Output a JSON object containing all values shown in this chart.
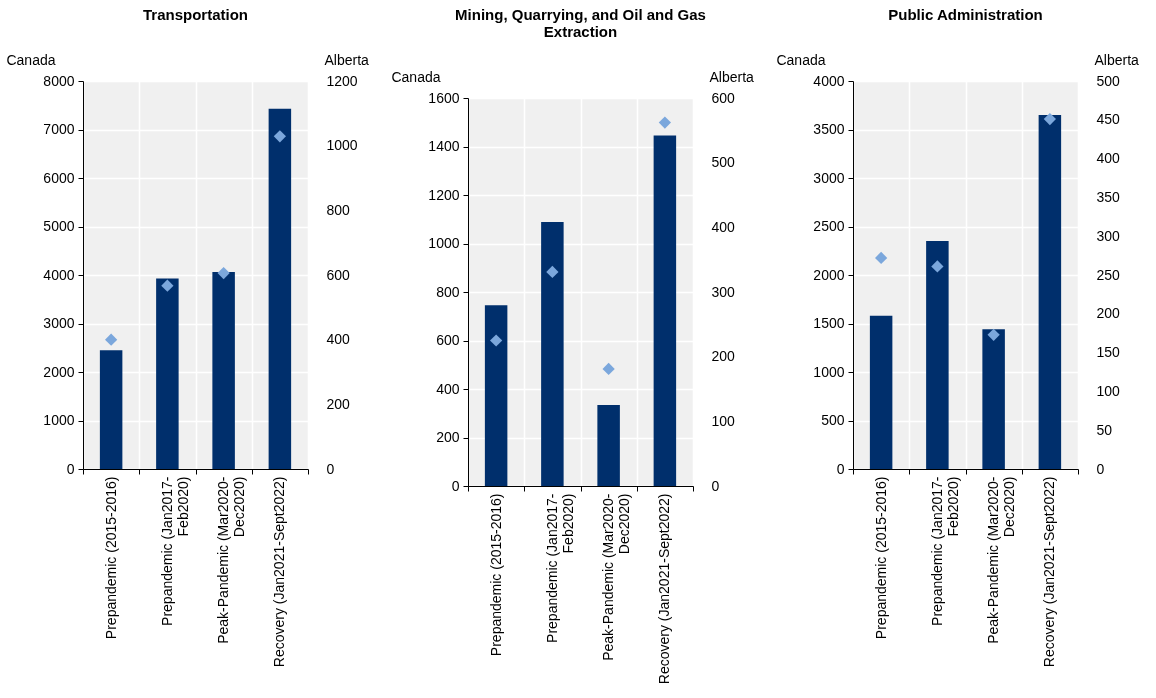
{
  "chart_data": [
    {
      "type": "bar",
      "title": "Transportation",
      "ylabel": "Canada",
      "y2label": "Alberta",
      "categories": [
        "Prepandemic (2015-2016)",
        "Prepandemic (Jan2017-Feb2020)",
        "Peak-Pandemic (Mar2020-Dec2020)",
        "Recovery (Jan2021-Sept2022)"
      ],
      "series": [
        {
          "color": "#002f6c",
          "values": [
            2450,
            3930,
            4060,
            7430
          ]
        },
        {
          "type": "scatter",
          "axis": "y2",
          "color": "#7ba7dc",
          "values": [
            400,
            567,
            606,
            1029
          ]
        }
      ],
      "ylim": [
        0,
        8000
      ],
      "yticks": [
        0,
        1000,
        2000,
        3000,
        4000,
        5000,
        6000,
        7000,
        8000
      ],
      "y2lim": [
        0,
        1200
      ],
      "y2ticks": [
        0,
        200,
        400,
        600,
        800,
        1000,
        1200
      ],
      "grid": true,
      "marker": "diamond"
    },
    {
      "type": "bar",
      "title": "Mining, Quarrying, and Oil and Gas Extraction",
      "ylabel": "Canada",
      "y2label": "Alberta",
      "categories": [
        "Prepandemic (2015-2016)",
        "Prepandemic (Jan2017-Feb2020)",
        "Peak-Pandemic (Mar2020-Dec2020)",
        "Recovery (Jan2021-Sept2022)"
      ],
      "series": [
        {
          "color": "#002f6c",
          "values": [
            745,
            1089,
            334,
            1445
          ]
        },
        {
          "type": "scatter",
          "axis": "y2",
          "color": "#7ba7dc",
          "values": [
            225,
            331,
            181,
            562
          ]
        }
      ],
      "ylim": [
        0,
        1600
      ],
      "yticks": [
        0,
        200,
        400,
        600,
        800,
        1000,
        1200,
        1400,
        1600
      ],
      "y2lim": [
        0,
        600
      ],
      "y2ticks": [
        0,
        100,
        200,
        300,
        400,
        500,
        600
      ],
      "grid": true,
      "marker": "diamond"
    },
    {
      "type": "bar",
      "title": "Public Administration",
      "ylabel": "Canada",
      "y2label": "Alberta",
      "categories": [
        "Prepandemic (2015-2016)",
        "Prepandemic (Jan2017-Feb2020)",
        "Peak-Pandemic (Mar2020-Dec2020)",
        "Recovery (Jan2021-Sept2022)"
      ],
      "series": [
        {
          "color": "#002f6c",
          "values": [
            1580,
            2350,
            1440,
            3650
          ]
        },
        {
          "type": "scatter",
          "axis": "y2",
          "color": "#7ba7dc",
          "values": [
            272,
            261,
            173,
            451
          ]
        }
      ],
      "ylim": [
        0,
        4000
      ],
      "yticks": [
        0,
        500,
        1000,
        1500,
        2000,
        2500,
        3000,
        3500,
        4000
      ],
      "y2lim": [
        0,
        500
      ],
      "y2ticks": [
        0,
        50,
        100,
        150,
        200,
        250,
        300,
        350,
        400,
        450,
        500
      ],
      "grid": true,
      "marker": "diamond"
    }
  ]
}
